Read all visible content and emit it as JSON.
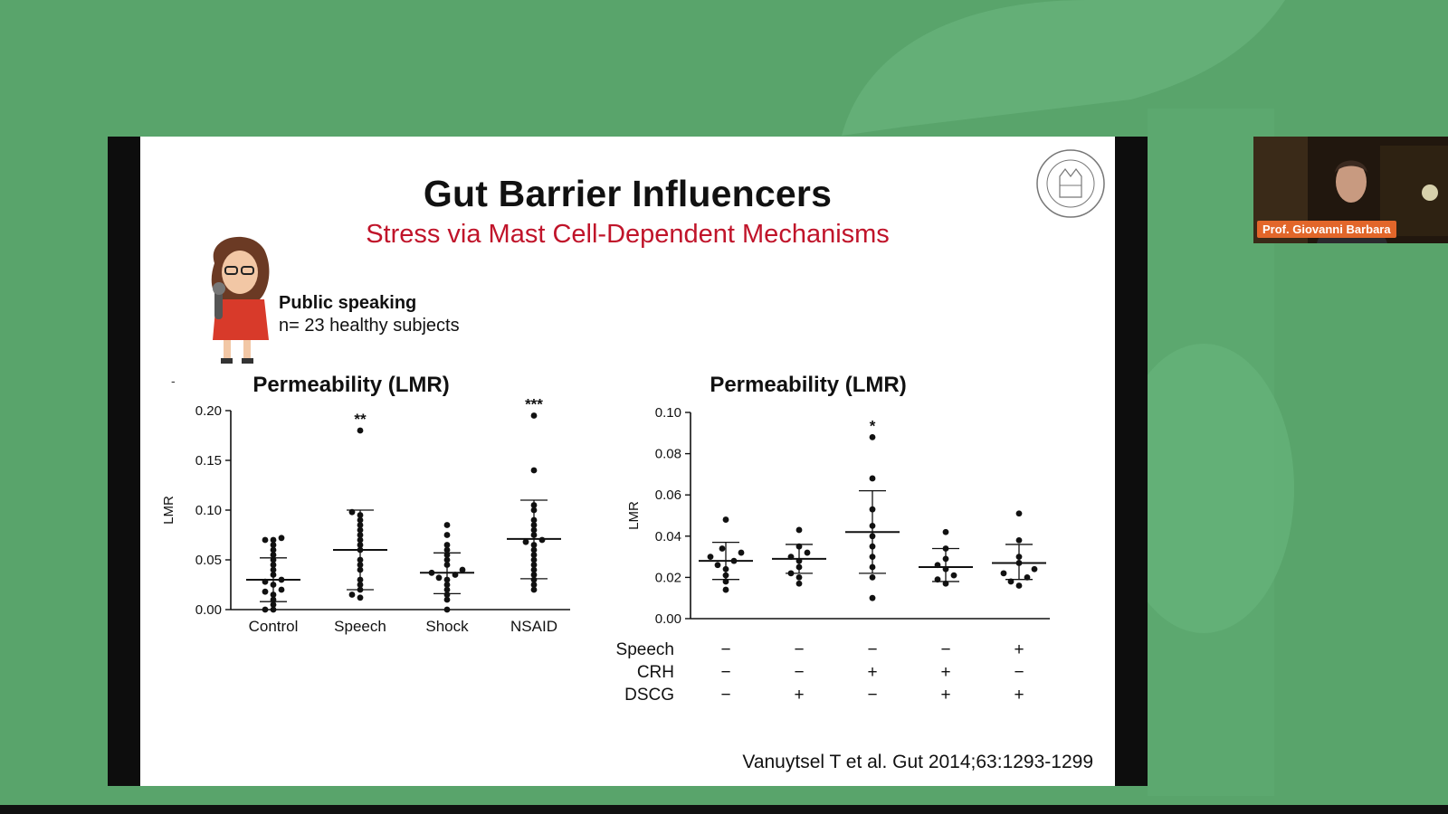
{
  "slide": {
    "title": "Gut Barrier Influencers",
    "subtitle": "Stress via Mast Cell-Dependent Mechanisms",
    "study_label": "Public speaking",
    "study_n": "n= 23 healthy subjects",
    "citation": "Vanuytsel T et al. Gut 2014;63:1293-1299",
    "stray_mark": "-"
  },
  "webcam": {
    "presenter_name": "Prof. Giovanni Barbara"
  },
  "chart_data": [
    {
      "type": "scatter",
      "title": "Permeability (LMR)",
      "ylabel": "LMR",
      "ylim": [
        0,
        0.2
      ],
      "yticks": [
        "0.00",
        "0.05",
        "0.10",
        "0.15",
        "0.20"
      ],
      "categories": [
        "Control",
        "Speech",
        "Shock",
        "NSAID"
      ],
      "means": [
        0.03,
        0.06,
        0.037,
        0.071
      ],
      "error_low": [
        0.008,
        0.02,
        0.016,
        0.031
      ],
      "error_high": [
        0.052,
        0.1,
        0.057,
        0.11
      ],
      "significance": [
        "",
        "**",
        "",
        "***"
      ],
      "points": [
        [
          0.0,
          0.0,
          0.005,
          0.01,
          0.015,
          0.018,
          0.02,
          0.025,
          0.028,
          0.03,
          0.035,
          0.04,
          0.045,
          0.05,
          0.055,
          0.06,
          0.065,
          0.07,
          0.07,
          0.072
        ],
        [
          0.012,
          0.015,
          0.02,
          0.025,
          0.03,
          0.04,
          0.045,
          0.05,
          0.06,
          0.065,
          0.07,
          0.075,
          0.08,
          0.085,
          0.09,
          0.095,
          0.098,
          0.18
        ],
        [
          0.0,
          0.01,
          0.015,
          0.02,
          0.025,
          0.03,
          0.032,
          0.035,
          0.037,
          0.04,
          0.045,
          0.05,
          0.055,
          0.06,
          0.065,
          0.075,
          0.085
        ],
        [
          0.02,
          0.025,
          0.03,
          0.035,
          0.04,
          0.045,
          0.05,
          0.055,
          0.06,
          0.065,
          0.068,
          0.07,
          0.075,
          0.08,
          0.085,
          0.09,
          0.1,
          0.105,
          0.14,
          0.195
        ]
      ]
    },
    {
      "type": "scatter",
      "title": "Permeability (LMR)",
      "ylabel": "LMR",
      "ylim": [
        0,
        0.1
      ],
      "yticks": [
        "0.00",
        "0.02",
        "0.04",
        "0.06",
        "0.08",
        "0.10"
      ],
      "means": [
        0.028,
        0.029,
        0.042,
        0.025,
        0.027
      ],
      "error_low": [
        0.019,
        0.022,
        0.022,
        0.018,
        0.019
      ],
      "error_high": [
        0.037,
        0.036,
        0.062,
        0.034,
        0.036
      ],
      "significance": [
        "",
        "",
        "*",
        "",
        ""
      ],
      "points": [
        [
          0.014,
          0.018,
          0.021,
          0.024,
          0.026,
          0.028,
          0.03,
          0.032,
          0.034,
          0.048
        ],
        [
          0.017,
          0.02,
          0.022,
          0.025,
          0.028,
          0.03,
          0.032,
          0.035,
          0.043
        ],
        [
          0.01,
          0.02,
          0.025,
          0.03,
          0.035,
          0.04,
          0.045,
          0.053,
          0.068,
          0.088
        ],
        [
          0.017,
          0.019,
          0.021,
          0.024,
          0.026,
          0.029,
          0.034,
          0.042
        ],
        [
          0.016,
          0.018,
          0.02,
          0.022,
          0.024,
          0.027,
          0.03,
          0.038,
          0.051
        ]
      ],
      "conditions": [
        {
          "label": "Speech",
          "values": [
            "−",
            "−",
            "−",
            "−",
            "+"
          ]
        },
        {
          "label": "CRH",
          "values": [
            "−",
            "−",
            "+",
            "+",
            "−"
          ]
        },
        {
          "label": "DSCG",
          "values": [
            "−",
            "+",
            "−",
            "+",
            "+"
          ]
        }
      ]
    }
  ]
}
